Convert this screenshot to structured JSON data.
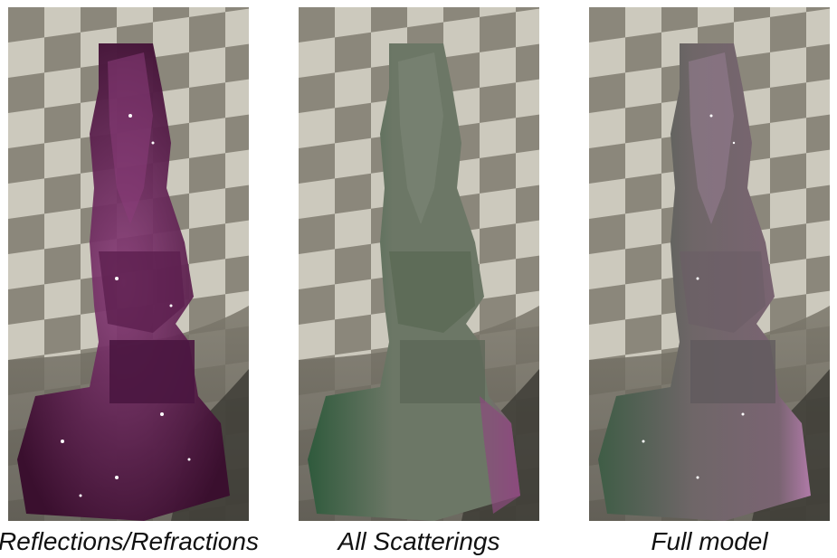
{
  "panels": [
    {
      "caption": "Reflections/Refractions",
      "object_icon": "translucent-statue",
      "tint": "#3a0f2e",
      "accent": "#8a3c7a",
      "edge": "#c070b0",
      "highlight": "#ffffff"
    },
    {
      "caption": "All Scatterings",
      "object_icon": "translucent-statue",
      "tint": "#6c7766",
      "accent": "#2f5a3c",
      "edge": "#8c4a7e",
      "highlight": "#c9d2c2"
    },
    {
      "caption": "Full model",
      "object_icon": "translucent-statue",
      "tint": "#6f6668",
      "accent": "#3f5d46",
      "edge": "#b07aa8",
      "highlight": "#ffffff"
    }
  ],
  "colors": {
    "checker_light": "#ccc9bd",
    "checker_dark": "#8b877b",
    "floor": "#6d6a60",
    "shadow": "#3b3933"
  }
}
